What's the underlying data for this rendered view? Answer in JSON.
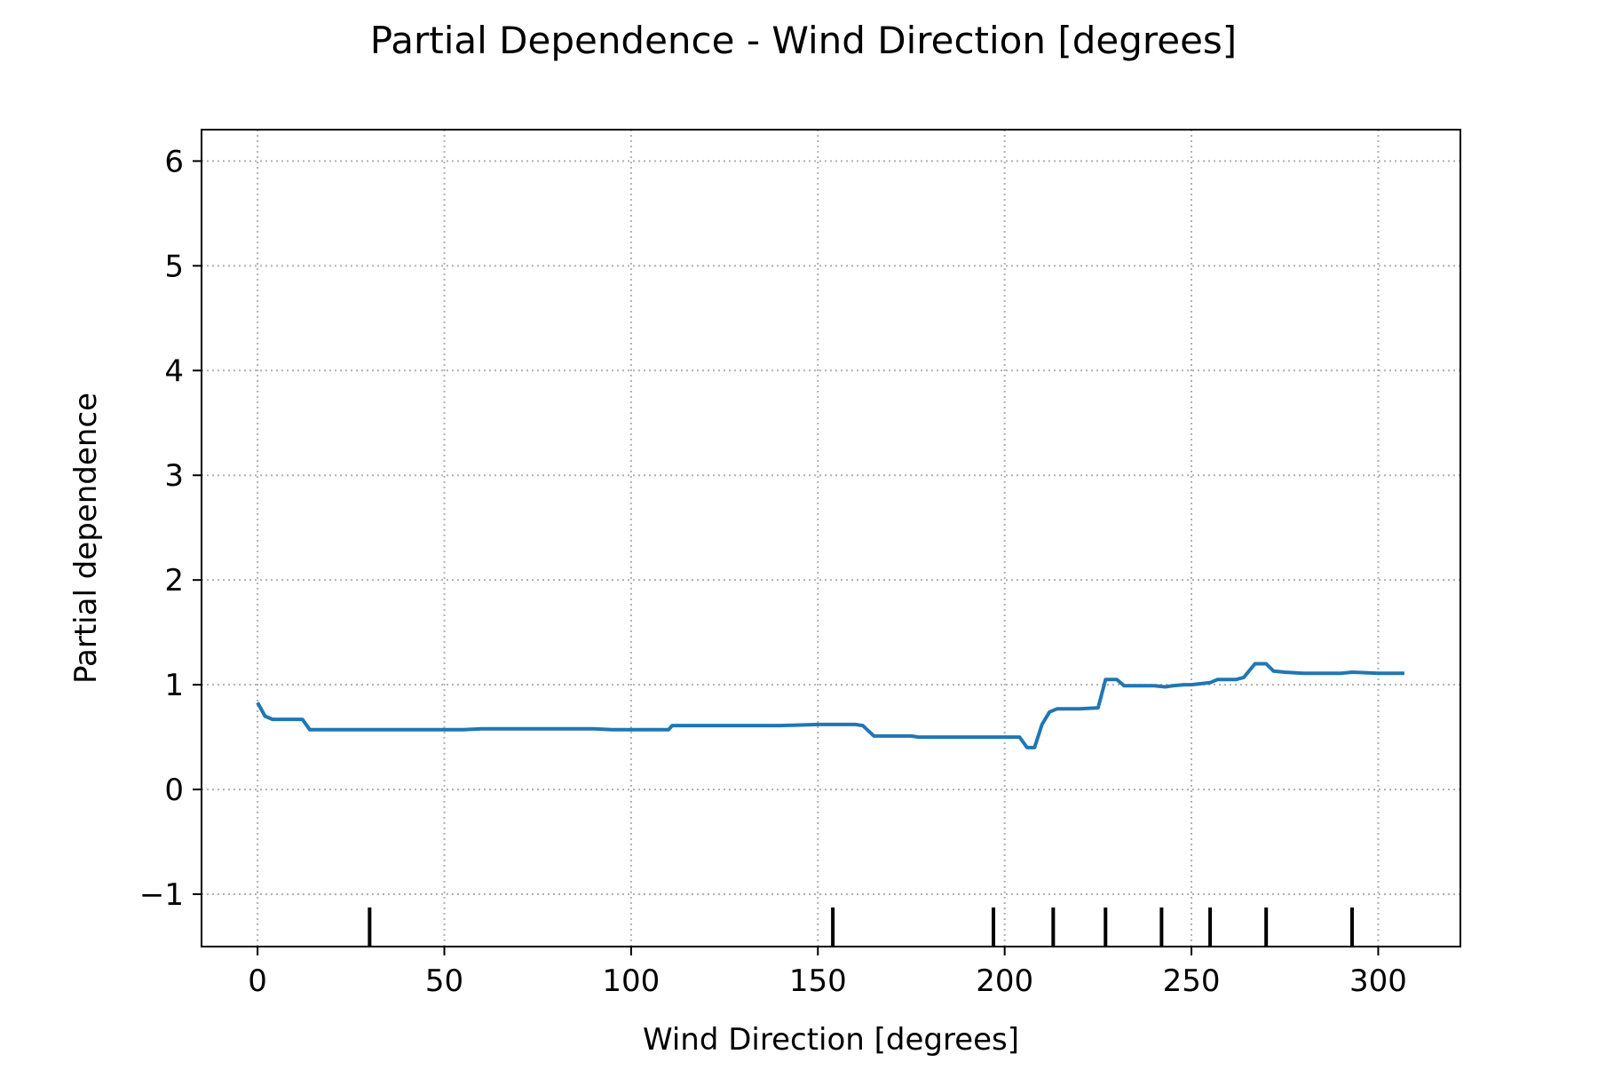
{
  "chart_data": {
    "type": "line",
    "title": "Partial Dependence - Wind Direction [degrees]",
    "xlabel": "Wind Direction [degrees]",
    "ylabel": "Partial dependence",
    "xlim": [
      -15,
      322
    ],
    "ylim": [
      -1.5,
      6.3
    ],
    "xticks": [
      0,
      50,
      100,
      150,
      200,
      250,
      300
    ],
    "xtick_labels": [
      "0",
      "50",
      "100",
      "150",
      "200",
      "250",
      "300"
    ],
    "yticks": [
      -1,
      0,
      1,
      2,
      3,
      4,
      5,
      6
    ],
    "ytick_labels": [
      "−1",
      "0",
      "1",
      "2",
      "3",
      "4",
      "5",
      "6"
    ],
    "grid": true,
    "line_color": "#1f77b4",
    "series": [
      {
        "x": [
          0,
          2,
          4,
          7,
          10,
          12,
          14,
          20,
          30,
          40,
          50,
          55,
          60,
          70,
          80,
          90,
          95,
          100,
          105,
          110,
          111,
          120,
          130,
          140,
          150,
          160,
          162,
          165,
          170,
          175,
          177,
          185,
          195,
          204,
          206,
          208,
          210,
          212,
          214,
          220,
          225,
          227,
          230,
          232,
          235,
          240,
          243,
          245,
          248,
          250,
          255,
          257,
          262,
          264,
          267,
          270,
          272,
          275,
          280,
          290,
          293,
          300,
          307
        ],
        "y": [
          0.83,
          0.7,
          0.67,
          0.67,
          0.67,
          0.67,
          0.57,
          0.57,
          0.57,
          0.57,
          0.57,
          0.57,
          0.58,
          0.58,
          0.58,
          0.58,
          0.57,
          0.57,
          0.57,
          0.57,
          0.61,
          0.61,
          0.61,
          0.61,
          0.62,
          0.62,
          0.61,
          0.51,
          0.51,
          0.51,
          0.5,
          0.5,
          0.5,
          0.5,
          0.4,
          0.4,
          0.62,
          0.74,
          0.77,
          0.77,
          0.78,
          1.05,
          1.05,
          0.99,
          0.99,
          0.99,
          0.98,
          0.99,
          1.0,
          1.0,
          1.02,
          1.05,
          1.05,
          1.07,
          1.2,
          1.2,
          1.13,
          1.12,
          1.11,
          1.11,
          1.12,
          1.11,
          1.11
        ]
      }
    ],
    "rug": {
      "x": [
        30,
        154,
        197,
        213,
        227,
        242,
        255,
        270,
        293
      ]
    }
  }
}
